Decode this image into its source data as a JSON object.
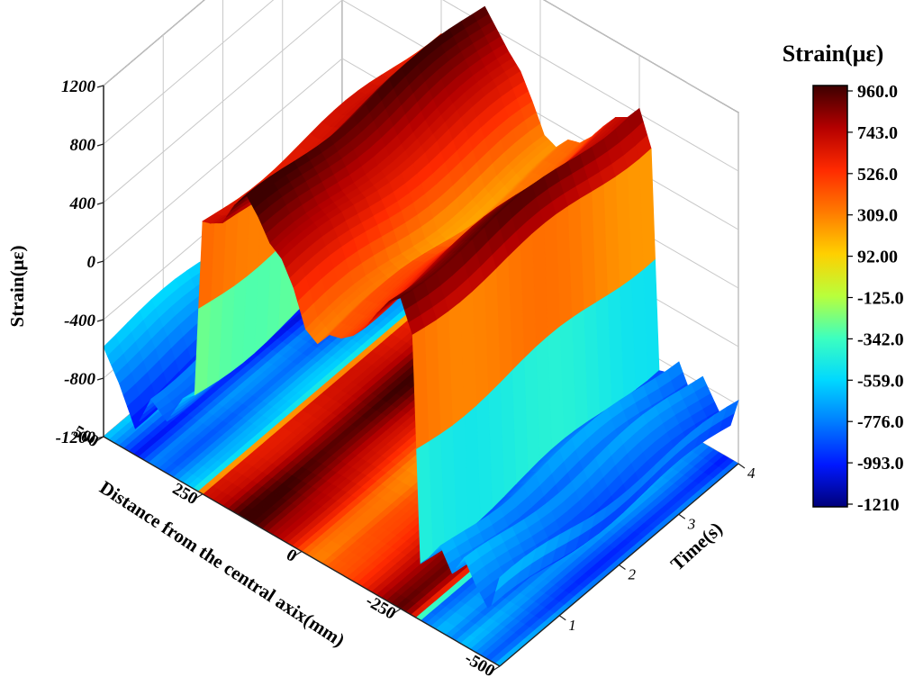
{
  "chart_data": {
    "type": "surface3d",
    "title": "",
    "zlabel": "Strain(με)",
    "xlabel": "Distance from the central axix(mm)",
    "ylabel": "Time(s)",
    "xlim": [
      -500,
      500
    ],
    "ylim": [
      0,
      4
    ],
    "zlim": [
      -1200,
      1200
    ],
    "z_ticks": [
      "1200",
      "800",
      "400",
      "0",
      "-400",
      "-800",
      "-1200"
    ],
    "x_ticks": [
      "500",
      "250",
      "0",
      "-250",
      "-500"
    ],
    "y_ticks": [
      "1",
      "2",
      "3",
      "4"
    ],
    "grid": true,
    "projection_contour_on_floor": true,
    "colorbar": {
      "title": "Strain(με)",
      "labels": [
        "960.0",
        "743.0",
        "526.0",
        "309.0",
        "92.00",
        "-125.0",
        "-342.0",
        "-559.0",
        "-776.0",
        "-993.0",
        "-1210"
      ],
      "range": [
        -1210,
        960
      ],
      "colors": [
        "#3d0000",
        "#b40000",
        "#ff2a00",
        "#ff7a00",
        "#ffd000",
        "#b8ff3c",
        "#3cffc0",
        "#00d8ff",
        "#007cff",
        "#0018ff",
        "#00007a"
      ]
    },
    "profile": {
      "x_mm": [
        -500,
        -475,
        -440,
        -410,
        -380,
        -350,
        -320,
        -300,
        -280,
        -250,
        -220,
        -190,
        -160,
        -130,
        -100,
        -70,
        -40,
        -10,
        20,
        50,
        80,
        110,
        140,
        170,
        200,
        230,
        250,
        270,
        300,
        340,
        380,
        420,
        460,
        500
      ],
      "strain_at_t0": [
        -620,
        -900,
        -780,
        -640,
        -790,
        -640,
        -760,
        -820,
        720,
        940,
        880,
        760,
        620,
        520,
        450,
        420,
        300,
        340,
        560,
        700,
        750,
        880,
        980,
        860,
        700,
        660,
        650,
        -560,
        -620,
        -820,
        -720,
        -980,
        -740,
        -560
      ],
      "strain_at_t4": [
        -780,
        -1020,
        -860,
        -720,
        -880,
        -700,
        -820,
        -840,
        640,
        860,
        740,
        680,
        560,
        430,
        330,
        300,
        200,
        240,
        430,
        600,
        700,
        820,
        940,
        820,
        660,
        600,
        600,
        -620,
        -680,
        -880,
        -780,
        -1040,
        -800,
        -620
      ]
    }
  }
}
